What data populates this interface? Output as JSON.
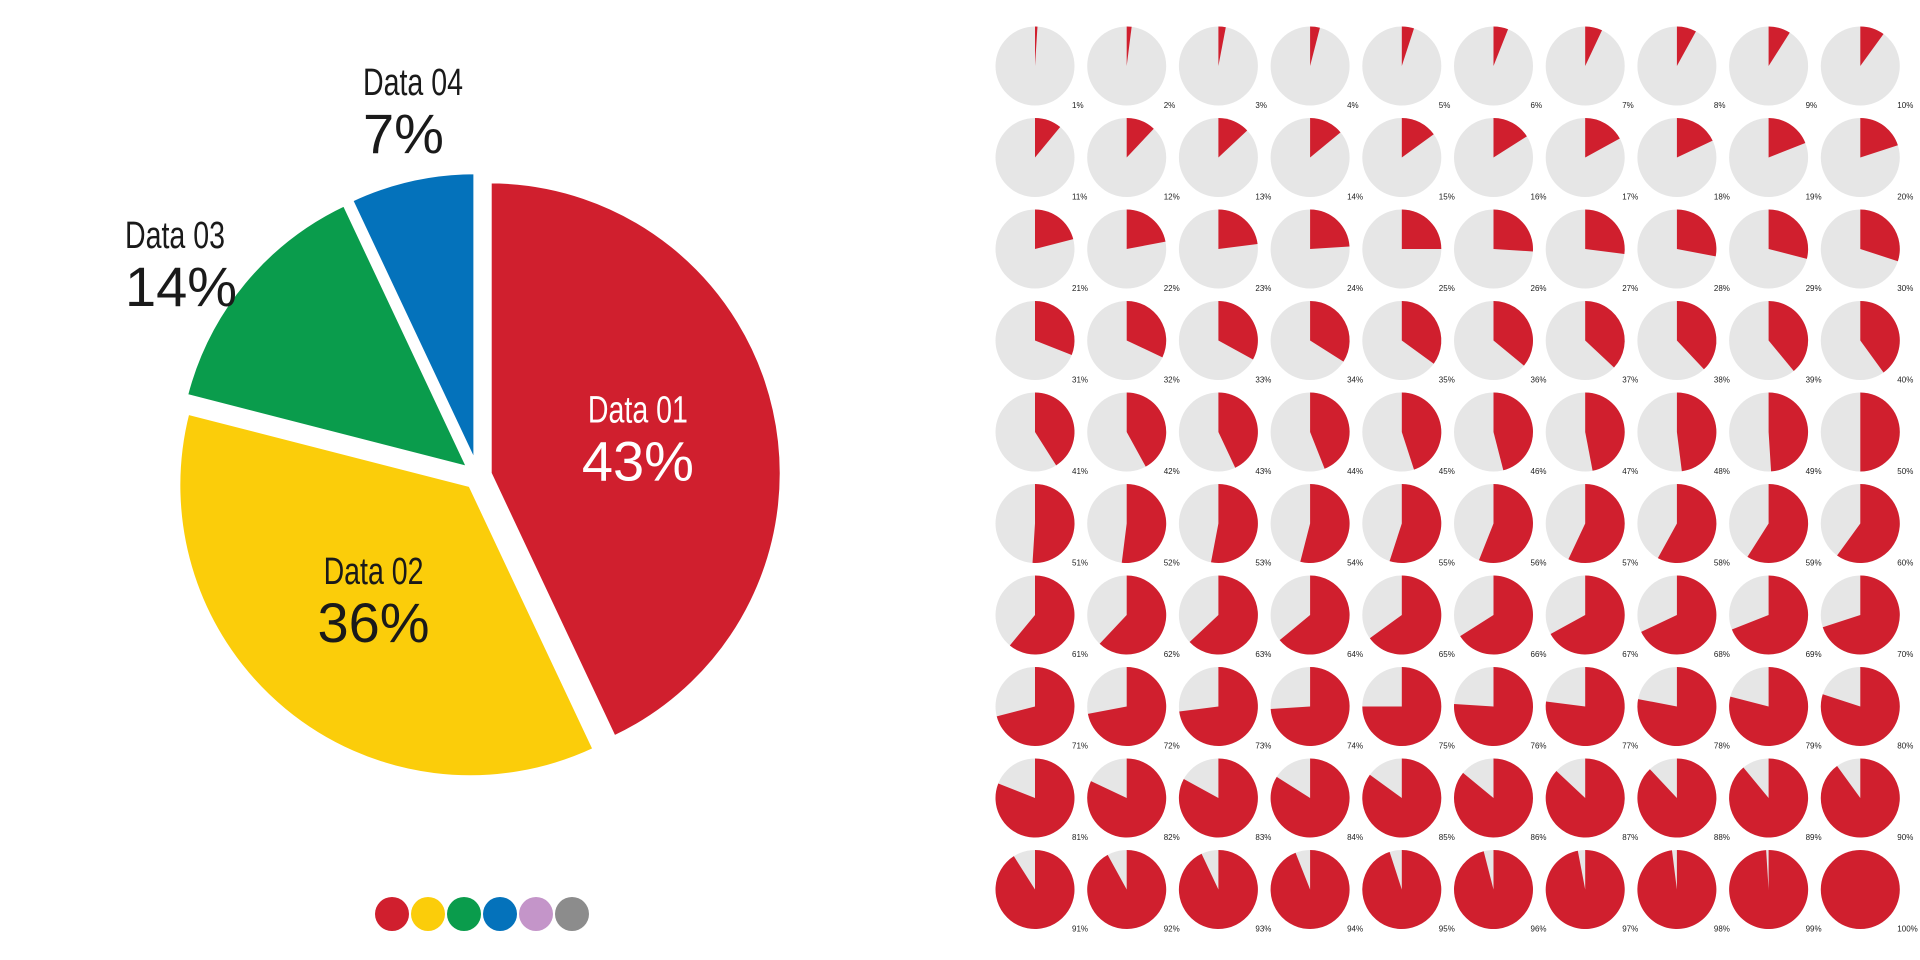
{
  "chart_data": [
    {
      "type": "pie",
      "slices": [
        {
          "label": "Data 01",
          "value": 43,
          "value_label": "43%",
          "color": "#D01F2E",
          "text_color": "#FFFFFF"
        },
        {
          "label": "Data 02",
          "value": 36,
          "value_label": "36%",
          "color": "#FBCD0A",
          "text_color": "#1A1A1A"
        },
        {
          "label": "Data 03",
          "value": 14,
          "value_label": "14%",
          "color": "#0A9C4C",
          "text_color": "#1A1A1A"
        },
        {
          "label": "Data 04",
          "value": 7,
          "value_label": "7%",
          "color": "#0472BB",
          "text_color": "#1A1A1A"
        }
      ],
      "swatches": [
        "#D01F2E",
        "#FBCD0A",
        "#0A9C4C",
        "#0472BB",
        "#C495C9",
        "#8C8C8C"
      ]
    },
    {
      "type": "pie",
      "layout": "small-multiples-grid",
      "rows": 10,
      "columns": 10,
      "value_unit": "%",
      "fill_color": "#D01F2E",
      "background_color": "#E6E6E6",
      "values": [
        1,
        2,
        3,
        4,
        5,
        6,
        7,
        8,
        9,
        10,
        11,
        12,
        13,
        14,
        15,
        16,
        17,
        18,
        19,
        20,
        21,
        22,
        23,
        24,
        25,
        26,
        27,
        28,
        29,
        30,
        31,
        32,
        33,
        34,
        35,
        36,
        37,
        38,
        39,
        40,
        41,
        42,
        43,
        44,
        45,
        46,
        47,
        48,
        49,
        50,
        51,
        52,
        53,
        54,
        55,
        56,
        57,
        58,
        59,
        60,
        61,
        62,
        63,
        64,
        65,
        66,
        67,
        68,
        69,
        70,
        71,
        72,
        73,
        74,
        75,
        76,
        77,
        78,
        79,
        80,
        81,
        82,
        83,
        84,
        85,
        86,
        87,
        88,
        89,
        90,
        91,
        92,
        93,
        94,
        95,
        96,
        97,
        98,
        99,
        100
      ]
    }
  ]
}
